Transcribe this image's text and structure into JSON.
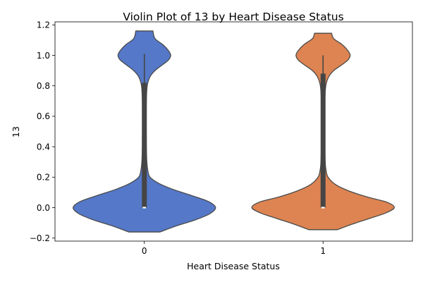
{
  "chart_data": {
    "type": "violin",
    "title": "Violin Plot of 13 by Heart Disease Status",
    "xlabel": "Heart Disease Status",
    "ylabel": "13",
    "categories": [
      "0",
      "1"
    ],
    "ylim": [
      -0.22,
      1.22
    ],
    "yticks": [
      -0.2,
      0.0,
      0.2,
      0.4,
      0.6,
      0.8,
      1.0,
      1.2
    ],
    "ytick_labels": [
      "−0.2",
      "0.0",
      "0.2",
      "0.4",
      "0.6",
      "0.8",
      "1.0",
      "1.2"
    ],
    "grid": false,
    "series": [
      {
        "category": "0",
        "color": "#5578c8",
        "density_range": [
          -0.16,
          1.16
        ],
        "density_profile": [
          [
            -0.16,
            0.22
          ],
          [
            -0.12,
            0.45
          ],
          [
            -0.08,
            0.72
          ],
          [
            -0.04,
            0.92
          ],
          [
            0.0,
            1.0
          ],
          [
            0.04,
            0.9
          ],
          [
            0.08,
            0.66
          ],
          [
            0.12,
            0.4
          ],
          [
            0.16,
            0.2
          ],
          [
            0.2,
            0.08
          ],
          [
            0.24,
            0.05
          ],
          [
            0.3,
            0.035
          ],
          [
            0.4,
            0.028
          ],
          [
            0.5,
            0.026
          ],
          [
            0.6,
            0.026
          ],
          [
            0.7,
            0.028
          ],
          [
            0.8,
            0.04
          ],
          [
            0.86,
            0.08
          ],
          [
            0.9,
            0.15
          ],
          [
            0.94,
            0.26
          ],
          [
            0.97,
            0.34
          ],
          [
            1.0,
            0.37
          ],
          [
            1.03,
            0.34
          ],
          [
            1.07,
            0.26
          ],
          [
            1.11,
            0.15
          ],
          [
            1.16,
            0.12
          ]
        ],
        "whisker": [
          0.0,
          1.01
        ],
        "box": [
          0.0,
          0.82
        ],
        "median": 0.0
      },
      {
        "category": "1",
        "color": "#dd8452",
        "density_range": [
          -0.145,
          1.145
        ],
        "density_profile": [
          [
            -0.145,
            0.2
          ],
          [
            -0.11,
            0.4
          ],
          [
            -0.07,
            0.66
          ],
          [
            -0.035,
            0.88
          ],
          [
            0.0,
            1.0
          ],
          [
            0.035,
            0.9
          ],
          [
            0.07,
            0.62
          ],
          [
            0.11,
            0.36
          ],
          [
            0.15,
            0.18
          ],
          [
            0.2,
            0.07
          ],
          [
            0.25,
            0.04
          ],
          [
            0.3,
            0.03
          ],
          [
            0.4,
            0.024
          ],
          [
            0.5,
            0.022
          ],
          [
            0.6,
            0.022
          ],
          [
            0.7,
            0.024
          ],
          [
            0.8,
            0.038
          ],
          [
            0.86,
            0.08
          ],
          [
            0.9,
            0.15
          ],
          [
            0.94,
            0.27
          ],
          [
            0.97,
            0.35
          ],
          [
            1.0,
            0.38
          ],
          [
            1.03,
            0.35
          ],
          [
            1.07,
            0.27
          ],
          [
            1.11,
            0.15
          ],
          [
            1.145,
            0.12
          ]
        ],
        "whisker": [
          0.0,
          1.0
        ],
        "box": [
          0.0,
          0.88
        ],
        "median": 0.0
      }
    ]
  }
}
